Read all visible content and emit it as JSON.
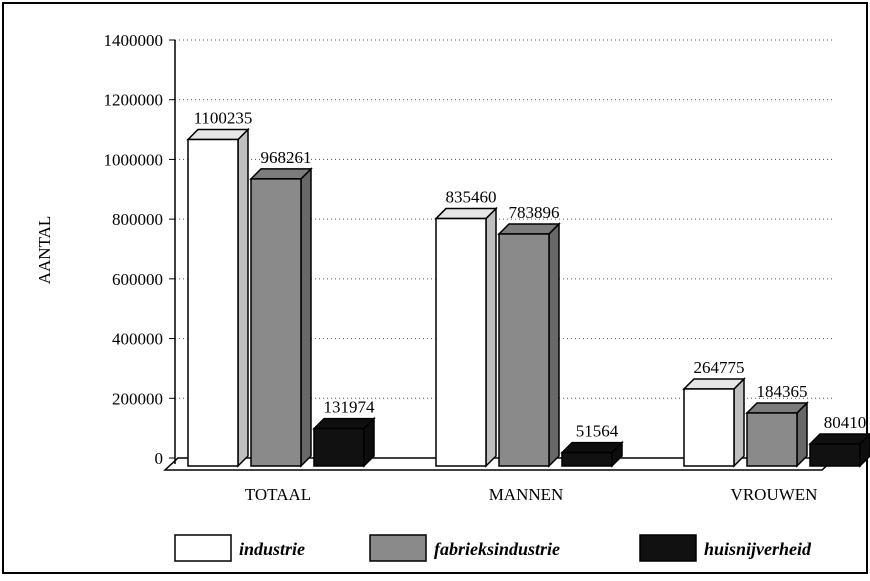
{
  "chart_data": {
    "type": "bar3d",
    "y_label": "AANTAL",
    "categories": [
      "TOTAAL",
      "MANNEN",
      "VROUWEN"
    ],
    "series": [
      {
        "name": "industrie",
        "color": "#ffffff",
        "values": [
          1100235,
          835460,
          264775
        ]
      },
      {
        "name": "fabrieksindustrie",
        "color": "#8a8a8a",
        "values": [
          968261,
          783896,
          184365
        ]
      },
      {
        "name": "huisnijverheid",
        "color": "#111111",
        "values": [
          131974,
          51564,
          80410
        ]
      }
    ],
    "ylim": [
      0,
      1400000
    ],
    "yticks": [
      0,
      200000,
      400000,
      600000,
      800000,
      1000000,
      1200000,
      1400000
    ],
    "grid": true,
    "legend": "bottom"
  }
}
